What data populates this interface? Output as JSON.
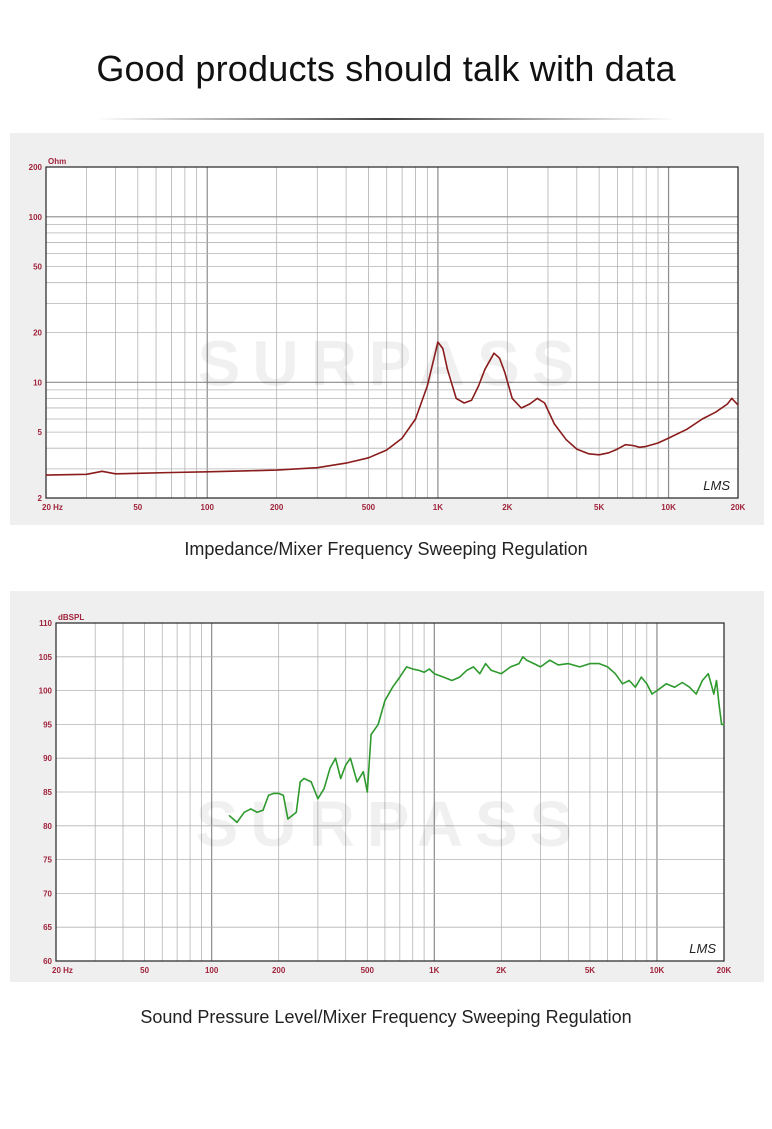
{
  "page": {
    "headline": "Good products should talk with data",
    "watermark": "SURPASS",
    "logo_text": "LMS"
  },
  "colors": {
    "impedance_line": "#8a1c1c",
    "spl_line": "#2e9a2e",
    "axis_text": "#a0243c",
    "grid": "#b4b4b4",
    "panel_bg": "#efefef"
  },
  "chart_data": [
    {
      "type": "line",
      "caption": "Impedance/Mixer Frequency Sweeping Regulation",
      "ylabel": "Ohm",
      "xscale": "log",
      "yscale": "log",
      "xlim": [
        20,
        20000
      ],
      "ylim": [
        2,
        200
      ],
      "x_ticks": [
        {
          "value": 20,
          "label": "20  Hz"
        },
        {
          "value": 50,
          "label": "50"
        },
        {
          "value": 100,
          "label": "100"
        },
        {
          "value": 200,
          "label": "200"
        },
        {
          "value": 500,
          "label": "500"
        },
        {
          "value": 1000,
          "label": "1K"
        },
        {
          "value": 2000,
          "label": "2K"
        },
        {
          "value": 5000,
          "label": "5K"
        },
        {
          "value": 10000,
          "label": "10K"
        },
        {
          "value": 20000,
          "label": "20K"
        }
      ],
      "y_ticks": [
        {
          "value": 2,
          "label": "2"
        },
        {
          "value": 5,
          "label": "5"
        },
        {
          "value": 10,
          "label": "10"
        },
        {
          "value": 20,
          "label": "20"
        },
        {
          "value": 50,
          "label": "50"
        },
        {
          "value": 100,
          "label": "100"
        },
        {
          "value": 200,
          "label": "200"
        }
      ],
      "series": [
        {
          "name": "Impedance",
          "x": [
            20,
            30,
            35,
            40,
            50,
            70,
            100,
            150,
            200,
            300,
            400,
            500,
            600,
            700,
            800,
            900,
            1000,
            1050,
            1100,
            1200,
            1300,
            1400,
            1500,
            1600,
            1750,
            1850,
            1950,
            2100,
            2300,
            2500,
            2700,
            2900,
            3200,
            3600,
            4000,
            4500,
            5000,
            5500,
            6000,
            6500,
            7000,
            7500,
            8000,
            9000,
            10000,
            12000,
            14000,
            16000,
            18000,
            18800,
            20000
          ],
          "y": [
            2.75,
            2.78,
            2.9,
            2.8,
            2.82,
            2.85,
            2.88,
            2.92,
            2.95,
            3.05,
            3.25,
            3.5,
            3.9,
            4.6,
            6.0,
            9.5,
            17.5,
            16.0,
            12.0,
            8.0,
            7.5,
            7.8,
            9.5,
            12.0,
            15.0,
            14.0,
            11.5,
            8.0,
            7.0,
            7.4,
            8.0,
            7.5,
            5.6,
            4.5,
            3.95,
            3.7,
            3.65,
            3.75,
            3.95,
            4.2,
            4.15,
            4.05,
            4.1,
            4.3,
            4.6,
            5.2,
            6.0,
            6.6,
            7.4,
            8.0,
            7.3
          ]
        }
      ]
    },
    {
      "type": "line",
      "caption": "Sound Pressure Level/Mixer Frequency Sweeping Regulation",
      "ylabel": "dBSPL",
      "xscale": "log",
      "xlim": [
        20,
        20000
      ],
      "ylim": [
        60,
        110
      ],
      "x_ticks": [
        {
          "value": 20,
          "label": "20  Hz"
        },
        {
          "value": 50,
          "label": "50"
        },
        {
          "value": 100,
          "label": "100"
        },
        {
          "value": 200,
          "label": "200"
        },
        {
          "value": 500,
          "label": "500"
        },
        {
          "value": 1000,
          "label": "1K"
        },
        {
          "value": 2000,
          "label": "2K"
        },
        {
          "value": 5000,
          "label": "5K"
        },
        {
          "value": 10000,
          "label": "10K"
        },
        {
          "value": 20000,
          "label": "20K"
        }
      ],
      "y_ticks": [
        {
          "value": 60,
          "label": "60"
        },
        {
          "value": 65,
          "label": "65"
        },
        {
          "value": 70,
          "label": "70"
        },
        {
          "value": 75,
          "label": "75"
        },
        {
          "value": 80,
          "label": "80"
        },
        {
          "value": 85,
          "label": "85"
        },
        {
          "value": 90,
          "label": "90"
        },
        {
          "value": 95,
          "label": "95"
        },
        {
          "value": 100,
          "label": "100"
        },
        {
          "value": 105,
          "label": "105"
        },
        {
          "value": 110,
          "label": "110"
        }
      ],
      "series": [
        {
          "name": "SPL",
          "x": [
            120,
            125,
            130,
            140,
            150,
            160,
            170,
            180,
            190,
            200,
            210,
            220,
            240,
            250,
            260,
            280,
            300,
            320,
            340,
            360,
            380,
            400,
            420,
            450,
            480,
            500,
            520,
            560,
            600,
            650,
            700,
            750,
            800,
            850,
            900,
            950,
            1000,
            1100,
            1200,
            1300,
            1400,
            1500,
            1600,
            1700,
            1800,
            2000,
            2200,
            2400,
            2500,
            2600,
            2800,
            3000,
            3300,
            3600,
            4000,
            4500,
            5000,
            5500,
            6000,
            6500,
            7000,
            7500,
            8000,
            8500,
            9000,
            9500,
            10000,
            11000,
            12000,
            13000,
            14000,
            15000,
            16000,
            17000,
            17500,
            18000,
            18500,
            19000,
            19500,
            20000
          ],
          "y": [
            81.5,
            81.0,
            80.5,
            82.0,
            82.5,
            82.0,
            82.3,
            84.5,
            84.8,
            84.8,
            84.5,
            81.0,
            82.0,
            86.5,
            87.0,
            86.5,
            84.0,
            85.5,
            88.5,
            90.0,
            87.0,
            89.0,
            90.0,
            86.5,
            88.0,
            85.0,
            93.5,
            95.0,
            98.5,
            100.5,
            102.0,
            103.5,
            103.2,
            103.0,
            102.7,
            103.2,
            102.5,
            102.0,
            101.5,
            102.0,
            103.0,
            103.5,
            102.5,
            104.0,
            103.0,
            102.5,
            103.5,
            104.0,
            105.0,
            104.5,
            104.0,
            103.5,
            104.5,
            103.8,
            104.0,
            103.5,
            104.0,
            104.0,
            103.5,
            102.5,
            101.0,
            101.5,
            100.5,
            102.0,
            101.0,
            99.5,
            100.0,
            101.0,
            100.5,
            101.2,
            100.5,
            99.5,
            101.5,
            102.5,
            101.0,
            99.5,
            101.5,
            98.0,
            95.0,
            95.0
          ]
        }
      ]
    }
  ]
}
